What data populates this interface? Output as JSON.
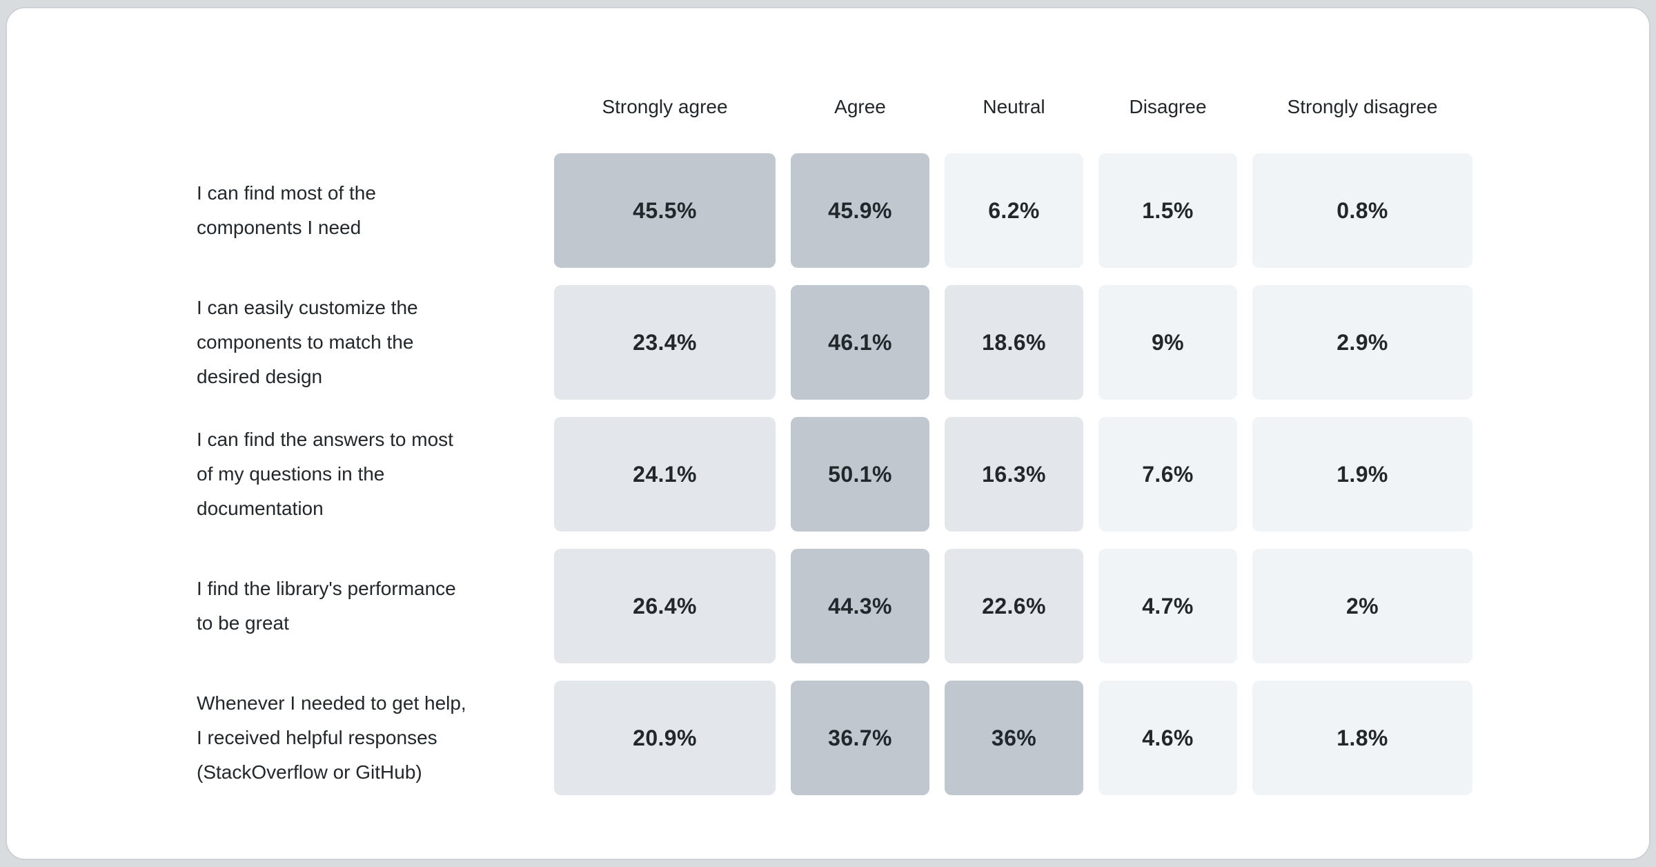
{
  "page": {
    "background_color": "#d8dcdf",
    "card_background_color": "#ffffff",
    "card_border_color": "#ccd2d7",
    "text_color": "#21272a"
  },
  "chart_data": {
    "type": "heatmap",
    "title": "",
    "columns": [
      "Strongly agree",
      "Agree",
      "Neutral",
      "Disagree",
      "Strongly disagree"
    ],
    "rows": [
      {
        "label": [
          "I can find most of the",
          "components I need"
        ],
        "values": [
          45.5,
          45.9,
          6.2,
          1.5,
          0.8
        ],
        "display": [
          "45.5%",
          "45.9%",
          "6.2%",
          "1.5%",
          "0.8%"
        ]
      },
      {
        "label": [
          "I can easily customize the",
          "components to match the",
          "desired design"
        ],
        "values": [
          23.4,
          46.1,
          18.6,
          9,
          2.9
        ],
        "display": [
          "23.4%",
          "46.1%",
          "18.6%",
          "9%",
          "2.9%"
        ]
      },
      {
        "label": [
          "I can find the answers to most",
          "of my questions in the",
          "documentation"
        ],
        "values": [
          24.1,
          50.1,
          16.3,
          7.6,
          1.9
        ],
        "display": [
          "24.1%",
          "50.1%",
          "16.3%",
          "7.6%",
          "1.9%"
        ]
      },
      {
        "label": [
          "I find the library's performance",
          "to be great"
        ],
        "values": [
          26.4,
          44.3,
          22.6,
          4.7,
          2
        ],
        "display": [
          "26.4%",
          "44.3%",
          "22.6%",
          "4.7%",
          "2%"
        ]
      },
      {
        "label": [
          "Whenever I needed to get help,",
          "I received helpful responses",
          "(StackOverflow or GitHub)"
        ],
        "values": [
          20.9,
          36.7,
          36,
          4.6,
          1.8
        ],
        "display": [
          "20.9%",
          "36.7%",
          "36%",
          "4.6%",
          "1.8%"
        ]
      }
    ],
    "color_scale": [
      {
        "max": 10,
        "color": "#f1f4f7"
      },
      {
        "max": 30,
        "color": "#e3e6ea"
      },
      {
        "max": 101,
        "color": "#c0c7cf"
      }
    ],
    "value_unit": "%",
    "value_range": [
      0,
      50.1
    ],
    "legend_position": "none",
    "grid": false
  }
}
